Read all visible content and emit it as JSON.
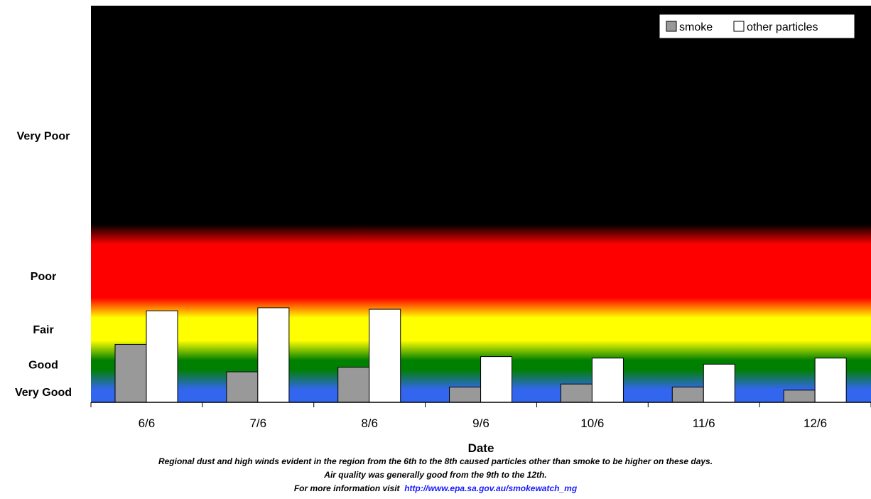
{
  "chart_data": {
    "type": "bar",
    "categories": [
      "6/6",
      "7/6",
      "8/6",
      "9/6",
      "10/6",
      "11/6",
      "12/6"
    ],
    "series": [
      {
        "name": "smoke",
        "color": "#999999",
        "values": [
          0.38,
          0.2,
          0.23,
          0.1,
          0.12,
          0.1,
          0.08
        ]
      },
      {
        "name": "other particles",
        "color": "#ffffff",
        "values": [
          0.6,
          0.62,
          0.61,
          0.3,
          0.29,
          0.25,
          0.29
        ]
      }
    ],
    "xlabel": "Date",
    "ylabel": "",
    "ylim": [
      0,
      2.6
    ],
    "y_categories": [
      {
        "label": "Very Good",
        "position": 0.07
      },
      {
        "label": "Good",
        "position": 0.25
      },
      {
        "label": "Fair",
        "position": 0.48
      },
      {
        "label": "Poor",
        "position": 0.83
      },
      {
        "label": "Very Poor",
        "position": 1.75
      }
    ],
    "background_bands": [
      {
        "name": "very-good",
        "from": 0.0,
        "to": 0.15,
        "color": "#3366ee"
      },
      {
        "name": "good",
        "from": 0.15,
        "to": 0.34,
        "color": "#008000"
      },
      {
        "name": "fair",
        "from": 0.34,
        "to": 0.62,
        "color": "#ffff00"
      },
      {
        "name": "poor",
        "from": 0.62,
        "to": 1.1,
        "color": "#ff0000"
      },
      {
        "name": "very-poor",
        "from": 1.1,
        "to": 2.6,
        "color": "#000000"
      }
    ],
    "legend_position": "top-right",
    "grid": false
  },
  "notes": {
    "line1": "Regional dust and high winds evident in the region from the 6th to the 8th caused particles other than smoke to be higher on these days.",
    "line2": "Air quality was generally good from the 9th to the 12th.",
    "line3_prefix": "For more information visit",
    "link": "http://www.epa.sa.gov.au/smokewatch_mg"
  }
}
